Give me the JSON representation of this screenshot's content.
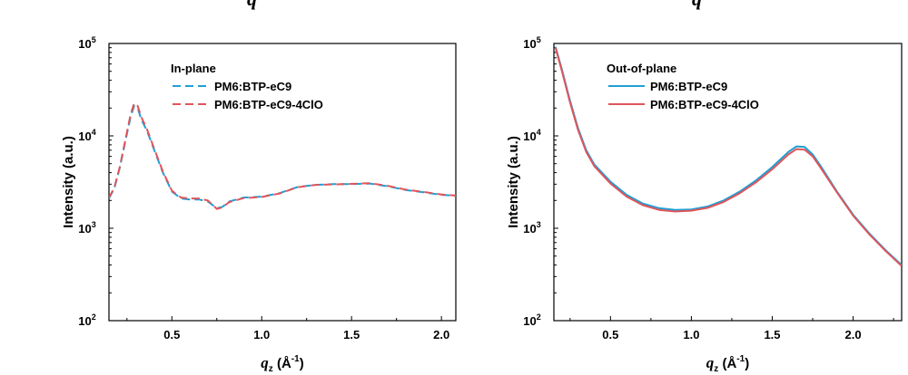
{
  "chart_data": [
    {
      "type": "line",
      "ylabel": "Intensity (a.u.)",
      "xlabel_main": "q",
      "xlabel_sub": "z",
      "xlabel_unit": " (Å",
      "xlabel_sup": "-1",
      "xlabel_close": ")",
      "yscale": "log",
      "xlim": [
        0.15,
        2.08
      ],
      "ylim": [
        100,
        100000
      ],
      "xticks": [
        0.5,
        1.0,
        1.5,
        2.0
      ],
      "xtick_labels": [
        "0.5",
        "1.0",
        "1.5",
        "2.0"
      ],
      "yticks": [
        100,
        1000,
        10000,
        100000
      ],
      "ytick_base": "10",
      "ytick_exps": [
        "2",
        "3",
        "4",
        "5"
      ],
      "legend_title": "In-plane",
      "legend_placement": "top-left",
      "series": [
        {
          "name": "PM6:BTP-eC9",
          "color": "#1f9fd6",
          "dash": "dashed",
          "x": [
            0.15,
            0.18,
            0.21,
            0.24,
            0.27,
            0.29,
            0.31,
            0.33,
            0.36,
            0.4,
            0.45,
            0.5,
            0.55,
            0.6,
            0.65,
            0.7,
            0.75,
            0.78,
            0.82,
            0.9,
            1.0,
            1.1,
            1.2,
            1.3,
            1.4,
            1.5,
            1.6,
            1.7,
            1.8,
            1.9,
            2.0,
            2.08
          ],
          "y": [
            2100,
            2700,
            4500,
            8500,
            16000,
            21000,
            20000,
            15000,
            11500,
            7200,
            4000,
            2500,
            2100,
            2050,
            2050,
            1950,
            1650,
            1700,
            1950,
            2150,
            2200,
            2400,
            2800,
            2950,
            3000,
            3000,
            3050,
            2850,
            2600,
            2450,
            2300,
            2250
          ]
        },
        {
          "name": "PM6:BTP-eC9-4ClO",
          "color": "#e0555a",
          "dash": "dashed",
          "x": [
            0.15,
            0.18,
            0.21,
            0.24,
            0.27,
            0.29,
            0.31,
            0.33,
            0.36,
            0.4,
            0.45,
            0.5,
            0.55,
            0.6,
            0.65,
            0.7,
            0.75,
            0.78,
            0.82,
            0.9,
            1.0,
            1.1,
            1.2,
            1.3,
            1.4,
            1.5,
            1.6,
            1.7,
            1.8,
            1.9,
            2.0,
            2.08
          ],
          "y": [
            2150,
            2750,
            4600,
            8800,
            17000,
            22500,
            21000,
            16000,
            12000,
            7400,
            4100,
            2550,
            2150,
            2100,
            2100,
            2000,
            1620,
            1680,
            1920,
            2120,
            2180,
            2380,
            2780,
            2950,
            2980,
            3020,
            3080,
            2880,
            2620,
            2470,
            2320,
            2260
          ]
        }
      ]
    },
    {
      "type": "line",
      "ylabel": "Intensity (a.u.)",
      "xlabel_main": "q",
      "xlabel_sub": "z",
      "xlabel_unit": " (Å",
      "xlabel_sup": "-1",
      "xlabel_close": ")",
      "yscale": "log",
      "xlim": [
        0.15,
        2.3
      ],
      "ylim": [
        100,
        100000
      ],
      "xticks": [
        0.5,
        1.0,
        1.5,
        2.0
      ],
      "xtick_labels": [
        "0.5",
        "1.0",
        "1.5",
        "2.0"
      ],
      "yticks": [
        100,
        1000,
        10000,
        100000
      ],
      "ytick_base": "10",
      "ytick_exps": [
        "2",
        "3",
        "4",
        "5"
      ],
      "legend_title": "Out-of-plane",
      "legend_placement": "top-left",
      "series": [
        {
          "name": "PM6:BTP-eC9",
          "color": "#1f9fd6",
          "dash": "solid",
          "x": [
            0.16,
            0.2,
            0.25,
            0.3,
            0.35,
            0.4,
            0.5,
            0.6,
            0.7,
            0.8,
            0.9,
            1.0,
            1.1,
            1.2,
            1.3,
            1.4,
            1.5,
            1.6,
            1.65,
            1.7,
            1.75,
            1.8,
            1.9,
            2.0,
            2.1,
            2.2,
            2.3
          ],
          "y": [
            92000,
            52000,
            24000,
            12000,
            7000,
            4900,
            3200,
            2300,
            1850,
            1650,
            1580,
            1600,
            1720,
            2000,
            2500,
            3300,
            4600,
            6700,
            7700,
            7600,
            6300,
            4700,
            2500,
            1400,
            880,
            580,
            400
          ]
        },
        {
          "name": "PM6:BTP-eC9-4ClO",
          "color": "#e0555a",
          "dash": "solid",
          "x": [
            0.16,
            0.2,
            0.25,
            0.3,
            0.35,
            0.4,
            0.5,
            0.6,
            0.7,
            0.8,
            0.9,
            1.0,
            1.1,
            1.2,
            1.3,
            1.4,
            1.5,
            1.6,
            1.65,
            1.7,
            1.75,
            1.8,
            1.9,
            2.0,
            2.1,
            2.2,
            2.3
          ],
          "y": [
            90000,
            50000,
            23000,
            11500,
            6700,
            4700,
            3050,
            2200,
            1780,
            1580,
            1520,
            1550,
            1660,
            1930,
            2400,
            3150,
            4350,
            6300,
            7200,
            7100,
            6000,
            4500,
            2450,
            1370,
            860,
            570,
            390
          ]
        }
      ]
    }
  ],
  "top_cut_labels": {
    "left": "q",
    "right": "q"
  }
}
